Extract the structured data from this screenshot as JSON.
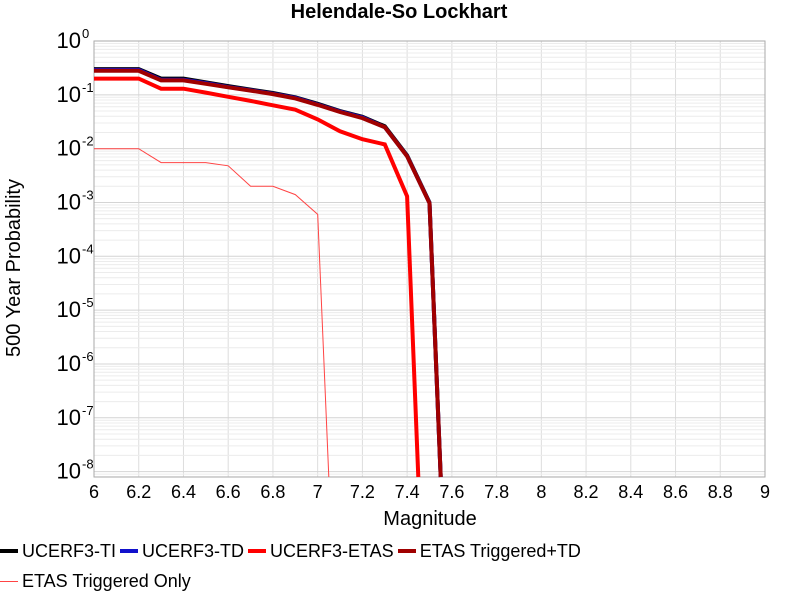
{
  "chart_data": {
    "type": "line",
    "title": "Helendale-So Lockhart",
    "xlabel": "Magnitude",
    "ylabel": "500 Year Probability",
    "xlim": [
      6,
      9
    ],
    "ylim_log10": [
      -8.1,
      0
    ],
    "y_scale": "log",
    "grid": true,
    "legend_position": "bottom",
    "x_ticks": [
      "6",
      "6.2",
      "6.4",
      "6.6",
      "6.8",
      "7",
      "7.2",
      "7.4",
      "7.6",
      "7.8",
      "8",
      "8.2",
      "8.4",
      "8.6",
      "8.8",
      "9"
    ],
    "y_ticks": [
      {
        "base": "10",
        "exp": "0",
        "log": 0
      },
      {
        "base": "10",
        "exp": "-1",
        "log": -1
      },
      {
        "base": "10",
        "exp": "-2",
        "log": -2
      },
      {
        "base": "10",
        "exp": "-3",
        "log": -3
      },
      {
        "base": "10",
        "exp": "-4",
        "log": -4
      },
      {
        "base": "10",
        "exp": "-5",
        "log": -5
      },
      {
        "base": "10",
        "exp": "-6",
        "log": -6
      },
      {
        "base": "10",
        "exp": "-7",
        "log": -7
      },
      {
        "base": "10",
        "exp": "-8",
        "log": -8
      }
    ],
    "series": [
      {
        "name": "UCERF3-TI",
        "color": "#000000",
        "width": 4,
        "x": [
          6.0,
          6.2,
          6.3,
          6.4,
          6.5,
          6.6,
          6.7,
          6.8,
          6.9,
          7.0,
          7.1,
          7.2,
          7.3,
          7.4,
          7.5,
          7.55
        ],
        "y": [
          0.3,
          0.3,
          0.2,
          0.2,
          0.17,
          0.145,
          0.125,
          0.108,
          0.09,
          0.068,
          0.05,
          0.039,
          0.026,
          0.0075,
          0.001,
          1e-09
        ]
      },
      {
        "name": "UCERF3-TD",
        "color": "#1111cc",
        "width": 4,
        "x": [
          6.0,
          6.2,
          6.3,
          6.4,
          6.5,
          6.6,
          6.7,
          6.8,
          6.9,
          7.0,
          7.1,
          7.2,
          7.3,
          7.4,
          7.5,
          7.55
        ],
        "y": [
          0.29,
          0.29,
          0.19,
          0.19,
          0.165,
          0.14,
          0.122,
          0.105,
          0.088,
          0.066,
          0.049,
          0.038,
          0.025,
          0.0073,
          0.00098,
          1e-09
        ]
      },
      {
        "name": "UCERF3-ETAS",
        "color": "#ff0000",
        "width": 4,
        "x": [
          6.0,
          6.2,
          6.3,
          6.4,
          6.5,
          6.6,
          6.7,
          6.8,
          6.9,
          7.0,
          7.1,
          7.2,
          7.3,
          7.4,
          7.45
        ],
        "y": [
          0.2,
          0.2,
          0.13,
          0.13,
          0.11,
          0.092,
          0.077,
          0.064,
          0.053,
          0.035,
          0.021,
          0.015,
          0.012,
          0.0013,
          1e-09
        ]
      },
      {
        "name": "ETAS Triggered+TD",
        "color": "#a00000",
        "width": 4,
        "x": [
          6.0,
          6.2,
          6.3,
          6.4,
          6.5,
          6.6,
          6.7,
          6.8,
          6.9,
          7.0,
          7.1,
          7.2,
          7.3,
          7.4,
          7.5,
          7.55
        ],
        "y": [
          0.28,
          0.28,
          0.185,
          0.185,
          0.16,
          0.138,
          0.12,
          0.103,
          0.086,
          0.065,
          0.048,
          0.037,
          0.025,
          0.0072,
          0.00097,
          1e-09
        ]
      },
      {
        "name": "ETAS Triggered Only",
        "color": "#ff4444",
        "width": 1,
        "x": [
          6.0,
          6.2,
          6.3,
          6.4,
          6.5,
          6.6,
          6.7,
          6.8,
          6.9,
          7.0,
          7.05
        ],
        "y": [
          0.01,
          0.01,
          0.0055,
          0.0055,
          0.0055,
          0.0048,
          0.002,
          0.002,
          0.0014,
          0.0006,
          1e-09
        ]
      }
    ]
  }
}
